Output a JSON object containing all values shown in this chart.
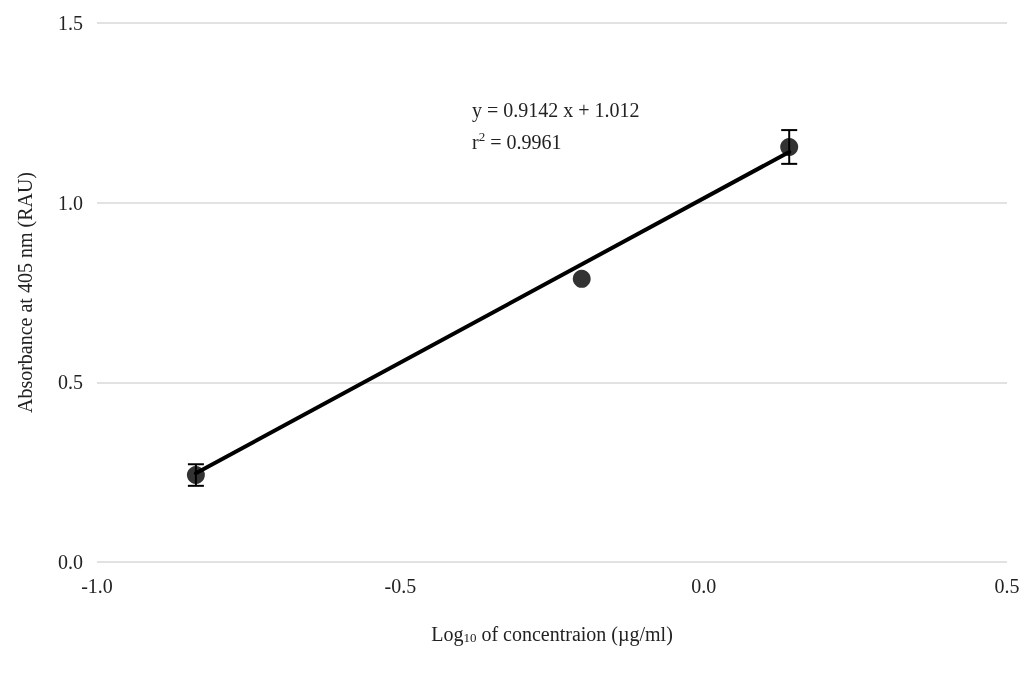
{
  "chart_data": {
    "type": "scatter",
    "xlabel": "Log$_{10}$ of concentraion (µg/ml)",
    "ylabel": "Absorbance at 405 nm (RAU)",
    "annotations": [
      "y = 0.9142 x + 1.012",
      "r$^{2}$ = 0.9961"
    ],
    "series": [
      {
        "color": "#000000",
        "marker": "circle",
        "x": [
          -0.837,
          -0.201,
          0.141
        ],
        "values": [
          0.242,
          0.788,
          1.155
        ],
        "errors": [
          0.03,
          null,
          0.047
        ]
      },
      {
        "type": "line",
        "color": "#000000",
        "marker": "none",
        "line_style": "solid",
        "x": [
          -0.837,
          0.141
        ],
        "values": [
          0.247,
          1.141
        ]
      }
    ],
    "xlim": [
      -1,
      0.5
    ],
    "xticks": [
      {
        "value": -1,
        "label": "-1.0"
      },
      {
        "value": -0.5,
        "label": "-0.5"
      },
      {
        "value": 0,
        "label": "0.0"
      },
      {
        "value": 0.5,
        "label": "0.5"
      }
    ],
    "ylim": [
      0,
      1.5
    ],
    "yticks": [
      {
        "value": 0,
        "label": "0.0"
      },
      {
        "value": 0.5,
        "label": "0.5"
      },
      {
        "value": 1,
        "label": "1.0"
      },
      {
        "value": 1.5,
        "label": "1.5"
      }
    ],
    "grid": "y"
  }
}
